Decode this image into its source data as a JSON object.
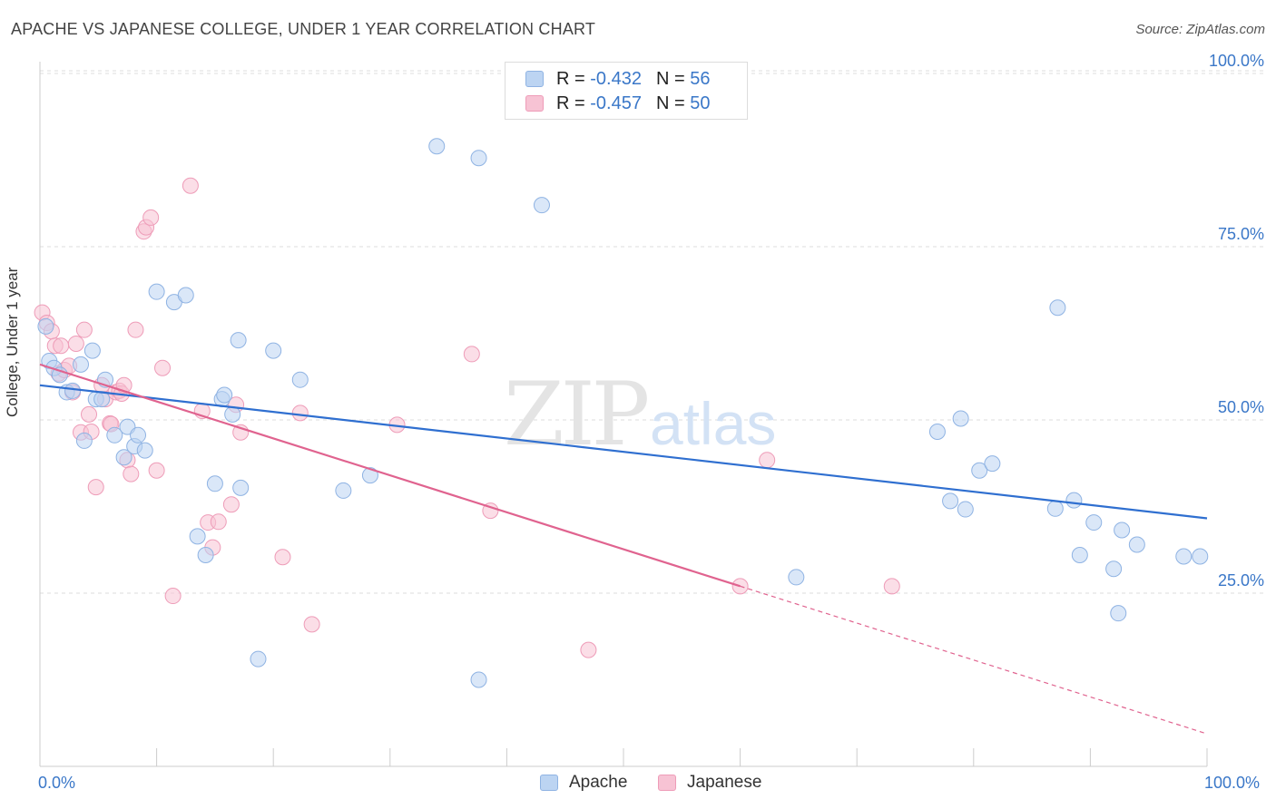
{
  "header": {
    "title": "APACHE VS JAPANESE COLLEGE, UNDER 1 YEAR CORRELATION CHART",
    "source": "Source: ZipAtlas.com"
  },
  "legend": {
    "r_label": "R =",
    "n_label": "N =",
    "rows": [
      {
        "r": "-0.432",
        "n": "56"
      },
      {
        "r": "-0.457",
        "n": "50"
      }
    ]
  },
  "watermark": {
    "zip": "ZIP",
    "atlas": "atlas"
  },
  "colors": {
    "apache_fill": "#bcd4f2",
    "apache_stroke": "#8fb3e3",
    "apache_line": "#2f6fd0",
    "japanese_fill": "#f7c3d4",
    "japanese_stroke": "#ee9cb8",
    "japanese_line": "#e0638f",
    "tick_text": "#3a77c8",
    "grid": "#dddddd"
  },
  "chart_data": {
    "type": "scatter",
    "title": "APACHE VS JAPANESE COLLEGE, UNDER 1 YEAR CORRELATION CHART",
    "xlabel": "",
    "ylabel": "College, Under 1 year",
    "xlim": [
      0,
      100
    ],
    "ylim": [
      0,
      105
    ],
    "x_tick_labels": [
      "0.0%",
      "100.0%"
    ],
    "y_ticks": [
      25,
      50,
      75,
      100
    ],
    "y_tick_labels": [
      "25.0%",
      "50.0%",
      "75.0%",
      "100.0%"
    ],
    "grid": true,
    "legend_position": "top-center",
    "series": [
      {
        "name": "Apache",
        "r": -0.432,
        "n": 56,
        "trend": {
          "x0": 0,
          "y0": 55.0,
          "x1": 100,
          "y1": 35.8
        },
        "points": [
          [
            0.5,
            63.5
          ],
          [
            0.8,
            58.5
          ],
          [
            1.2,
            57.5
          ],
          [
            1.7,
            56.5
          ],
          [
            2.3,
            54.0
          ],
          [
            2.8,
            54.2
          ],
          [
            3.5,
            58.0
          ],
          [
            4.5,
            60.0
          ],
          [
            3.8,
            47.0
          ],
          [
            4.8,
            53.0
          ],
          [
            5.6,
            55.8
          ],
          [
            5.3,
            53.0
          ],
          [
            6.4,
            47.8
          ],
          [
            7.2,
            44.6
          ],
          [
            7.5,
            49.0
          ],
          [
            8.1,
            46.2
          ],
          [
            8.4,
            47.8
          ],
          [
            9.0,
            45.6
          ],
          [
            10.0,
            68.5
          ],
          [
            11.5,
            67.0
          ],
          [
            12.5,
            68.0
          ],
          [
            13.5,
            33.2
          ],
          [
            14.2,
            30.5
          ],
          [
            15.0,
            40.8
          ],
          [
            15.6,
            53.0
          ],
          [
            15.8,
            53.6
          ],
          [
            16.5,
            50.8
          ],
          [
            17.0,
            61.5
          ],
          [
            17.2,
            40.2
          ],
          [
            18.7,
            15.5
          ],
          [
            20.0,
            60.0
          ],
          [
            22.3,
            55.8
          ],
          [
            26.0,
            39.8
          ],
          [
            28.3,
            42.0
          ],
          [
            34.0,
            89.5
          ],
          [
            37.6,
            12.5
          ],
          [
            37.6,
            87.8
          ],
          [
            43.0,
            81.0
          ],
          [
            64.8,
            27.3
          ],
          [
            76.9,
            48.3
          ],
          [
            78.0,
            38.3
          ],
          [
            78.9,
            50.2
          ],
          [
            79.3,
            37.1
          ],
          [
            80.5,
            42.7
          ],
          [
            81.6,
            43.7
          ],
          [
            87.0,
            37.2
          ],
          [
            87.2,
            66.2
          ],
          [
            88.6,
            38.4
          ],
          [
            89.1,
            30.5
          ],
          [
            90.3,
            35.2
          ],
          [
            92.0,
            28.5
          ],
          [
            92.4,
            22.1
          ],
          [
            92.7,
            34.1
          ],
          [
            94.0,
            32.0
          ],
          [
            98.0,
            30.3
          ],
          [
            99.4,
            30.3
          ]
        ]
      },
      {
        "name": "Japanese",
        "r": -0.457,
        "n": 50,
        "trend": {
          "x0": 0,
          "y0": 58.0,
          "x1": 60,
          "y1": 26.0,
          "x_dash_end": 100,
          "y_dash_end": 4.7
        },
        "points": [
          [
            0.2,
            65.5
          ],
          [
            0.6,
            64.0
          ],
          [
            1.0,
            62.8
          ],
          [
            1.3,
            60.7
          ],
          [
            1.6,
            56.7
          ],
          [
            1.8,
            60.7
          ],
          [
            2.1,
            57.2
          ],
          [
            2.5,
            57.8
          ],
          [
            2.8,
            54.0
          ],
          [
            3.1,
            61.0
          ],
          [
            3.5,
            48.2
          ],
          [
            3.8,
            63.0
          ],
          [
            4.2,
            50.8
          ],
          [
            4.4,
            48.3
          ],
          [
            4.8,
            40.3
          ],
          [
            5.3,
            55.0
          ],
          [
            5.6,
            53.0
          ],
          [
            6.0,
            49.5
          ],
          [
            6.1,
            49.4
          ],
          [
            6.5,
            54.0
          ],
          [
            6.8,
            54.2
          ],
          [
            7.0,
            53.8
          ],
          [
            7.2,
            55.0
          ],
          [
            7.5,
            44.2
          ],
          [
            7.8,
            42.2
          ],
          [
            8.2,
            63.0
          ],
          [
            8.9,
            77.2
          ],
          [
            9.1,
            77.8
          ],
          [
            9.5,
            79.2
          ],
          [
            10.0,
            42.7
          ],
          [
            10.5,
            57.5
          ],
          [
            11.4,
            24.6
          ],
          [
            12.9,
            83.8
          ],
          [
            13.9,
            51.3
          ],
          [
            14.4,
            35.2
          ],
          [
            14.8,
            31.6
          ],
          [
            15.3,
            35.3
          ],
          [
            16.4,
            37.8
          ],
          [
            16.8,
            52.2
          ],
          [
            17.2,
            48.2
          ],
          [
            20.8,
            30.2
          ],
          [
            22.3,
            51.0
          ],
          [
            23.3,
            20.5
          ],
          [
            30.6,
            49.3
          ],
          [
            37.0,
            59.5
          ],
          [
            38.6,
            36.9
          ],
          [
            47.0,
            16.8
          ],
          [
            60.0,
            26.0
          ],
          [
            62.3,
            44.2
          ],
          [
            73.0,
            26.0
          ]
        ]
      }
    ]
  }
}
